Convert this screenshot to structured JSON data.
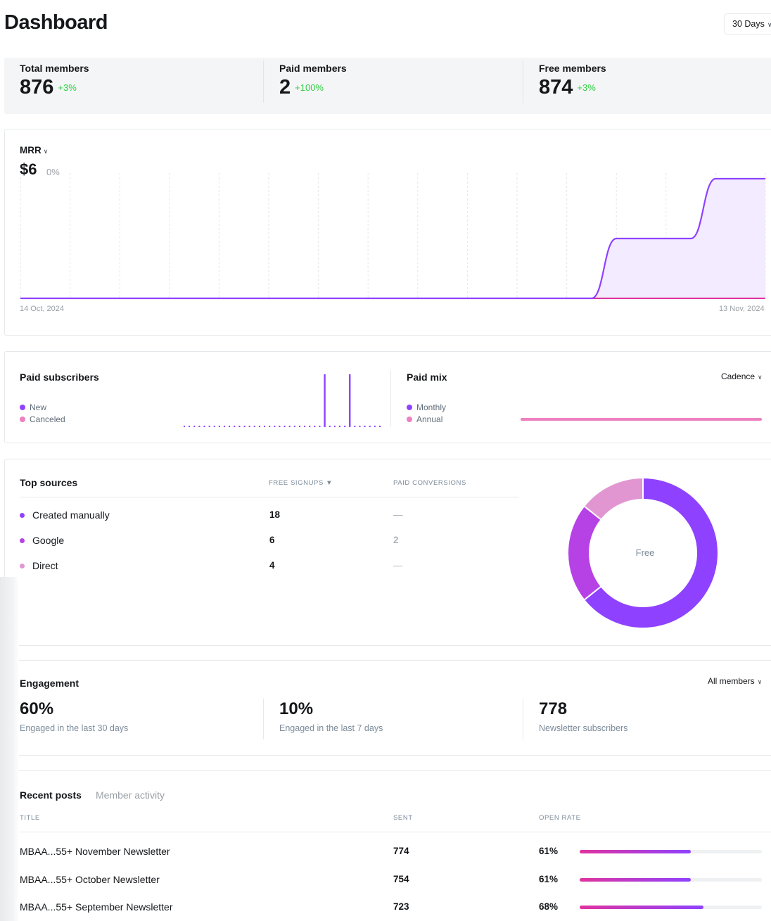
{
  "header": {
    "title": "Dashboard",
    "range_label": "30 Days"
  },
  "kpis": [
    {
      "label": "Total members",
      "value": "876",
      "change": "+3%"
    },
    {
      "label": "Paid members",
      "value": "2",
      "change": "+100%"
    },
    {
      "label": "Free members",
      "value": "874",
      "change": "+3%"
    }
  ],
  "mrr": {
    "label": "MRR",
    "value": "$6",
    "change": "0%",
    "start_date": "14 Oct, 2024",
    "end_date": "13 Nov, 2024",
    "points": [
      0,
      0,
      0,
      0,
      0,
      0,
      0,
      0,
      0,
      0,
      0,
      0,
      0,
      0,
      0,
      0,
      0,
      0,
      0,
      0,
      0,
      0,
      0,
      0,
      2,
      2,
      2,
      2,
      4,
      4,
      4
    ]
  },
  "paid_subscribers": {
    "title": "Paid subscribers",
    "legend": [
      "New",
      "Canceled"
    ],
    "new_counts": [
      0,
      0,
      0,
      0,
      0,
      0,
      0,
      0,
      0,
      0,
      0,
      0,
      0,
      0,
      0,
      0,
      0,
      0,
      0,
      0,
      0,
      0,
      0,
      0,
      0,
      0,
      0,
      0,
      1,
      0,
      0,
      0,
      0,
      1,
      0,
      0,
      0,
      0,
      0,
      0
    ]
  },
  "paid_mix": {
    "title": "Paid mix",
    "legend": [
      "Monthly",
      "Annual"
    ],
    "cadence_label": "Cadence"
  },
  "top_sources": {
    "title": "Top sources",
    "columns": [
      "Free signups ▼",
      "Paid conversions"
    ],
    "rows": [
      {
        "name": "Created manually",
        "free": "18",
        "paid": "—",
        "color": "#8e42ff"
      },
      {
        "name": "Google",
        "free": "6",
        "paid": "2",
        "color": "#b642e6"
      },
      {
        "name": "Direct",
        "free": "4",
        "paid": "—",
        "color": "#e196d2"
      }
    ],
    "donut_label": "Free",
    "donut_values": [
      18,
      6,
      4
    ]
  },
  "engagement": {
    "title": "Engagement",
    "filter_label": "All members",
    "stats": [
      {
        "value": "60%",
        "label": "Engaged in the last 30 days"
      },
      {
        "value": "10%",
        "label": "Engaged in the last 7 days"
      },
      {
        "value": "778",
        "label": "Newsletter subscribers"
      }
    ]
  },
  "recent_posts": {
    "tabs": [
      "Recent posts",
      "Member activity"
    ],
    "columns": [
      "Title",
      "Sent",
      "Open rate"
    ],
    "rows": [
      {
        "title": "MBAA...55+ November Newsletter",
        "sent": "774",
        "open_rate": "61%",
        "open_fraction": 0.61
      },
      {
        "title": "MBAA...55+ October Newsletter",
        "sent": "754",
        "open_rate": "61%",
        "open_fraction": 0.61
      },
      {
        "title": "MBAA...55+ September Newsletter",
        "sent": "723",
        "open_rate": "68%",
        "open_fraction": 0.68
      }
    ]
  },
  "colors": {
    "purple": "#8e42ff",
    "pink": "#e0339f",
    "light_pink": "#ed80c0",
    "green": "#30cf43",
    "donut_mid": "#b642e6",
    "donut_light": "#e196d2"
  }
}
